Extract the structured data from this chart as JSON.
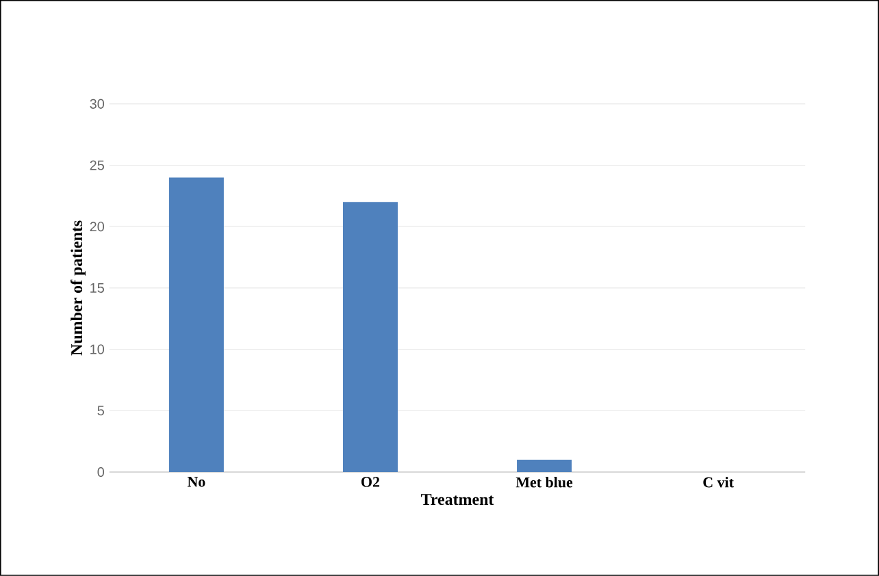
{
  "chart_data": {
    "type": "bar",
    "xlabel": "Treatment",
    "ylabel": "Number of patients",
    "categories": [
      "No",
      "O2",
      "Met blue",
      "C vit"
    ],
    "values": [
      24,
      22,
      1,
      0
    ],
    "color": "#4f81bd",
    "ylim": [
      0,
      30
    ],
    "yticks": [
      0,
      5,
      10,
      15,
      20,
      25,
      30
    ],
    "grid": "y"
  }
}
